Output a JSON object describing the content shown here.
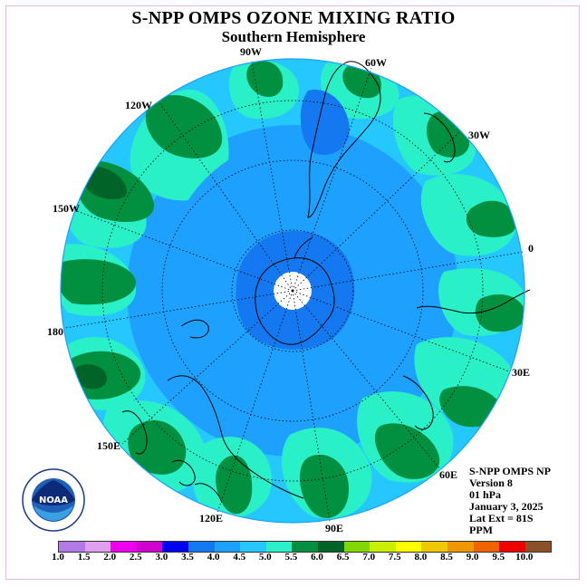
{
  "title": "S-NPP OMPS OZONE MIXING RATIO",
  "subtitle": "Southern Hemisphere",
  "longitude_labels": [
    "90W",
    "60W",
    "120W",
    "30W",
    "150W",
    "0",
    "180",
    "30E",
    "150E",
    "60E",
    "120E",
    "90E"
  ],
  "info": {
    "instrument": "S-NPP OMPS NP",
    "version": "Version 8",
    "level": "01 hPa",
    "date": "January 3, 2025",
    "lat_ext": "Lat Ext = 81S",
    "units": "PPM"
  },
  "logo": {
    "text": "NOAA",
    "icon": "noaa-logo"
  },
  "colorbar": {
    "ticks": [
      "1.0",
      "1.5",
      "2.0",
      "2.5",
      "3.0",
      "3.5",
      "4.0",
      "4.5",
      "5.0",
      "5.5",
      "6.0",
      "6.5",
      "7.0",
      "7.5",
      "8.0",
      "8.5",
      "9.0",
      "9.5",
      "10.0"
    ],
    "colors": [
      "#b27ae6",
      "#e0a0f0",
      "#ee00ee",
      "#d000d0",
      "#0000ee",
      "#1478f0",
      "#1ea0ff",
      "#24c8ff",
      "#2af0c8",
      "#009040",
      "#006428",
      "#80d800",
      "#c8f000",
      "#ffff00",
      "#f0c800",
      "#f09600",
      "#f06400",
      "#ee0000",
      "#8c5028"
    ]
  },
  "map_colors": {
    "ocean_base": "#1ea0ff",
    "level_3_5": "#1478f0",
    "level_4_0": "#1ea0ff",
    "level_4_5": "#24c8ff",
    "level_5_0": "#2af0c8",
    "level_5_5": "#009040",
    "level_6_0": "#006428",
    "missing": "#ffffff"
  }
}
